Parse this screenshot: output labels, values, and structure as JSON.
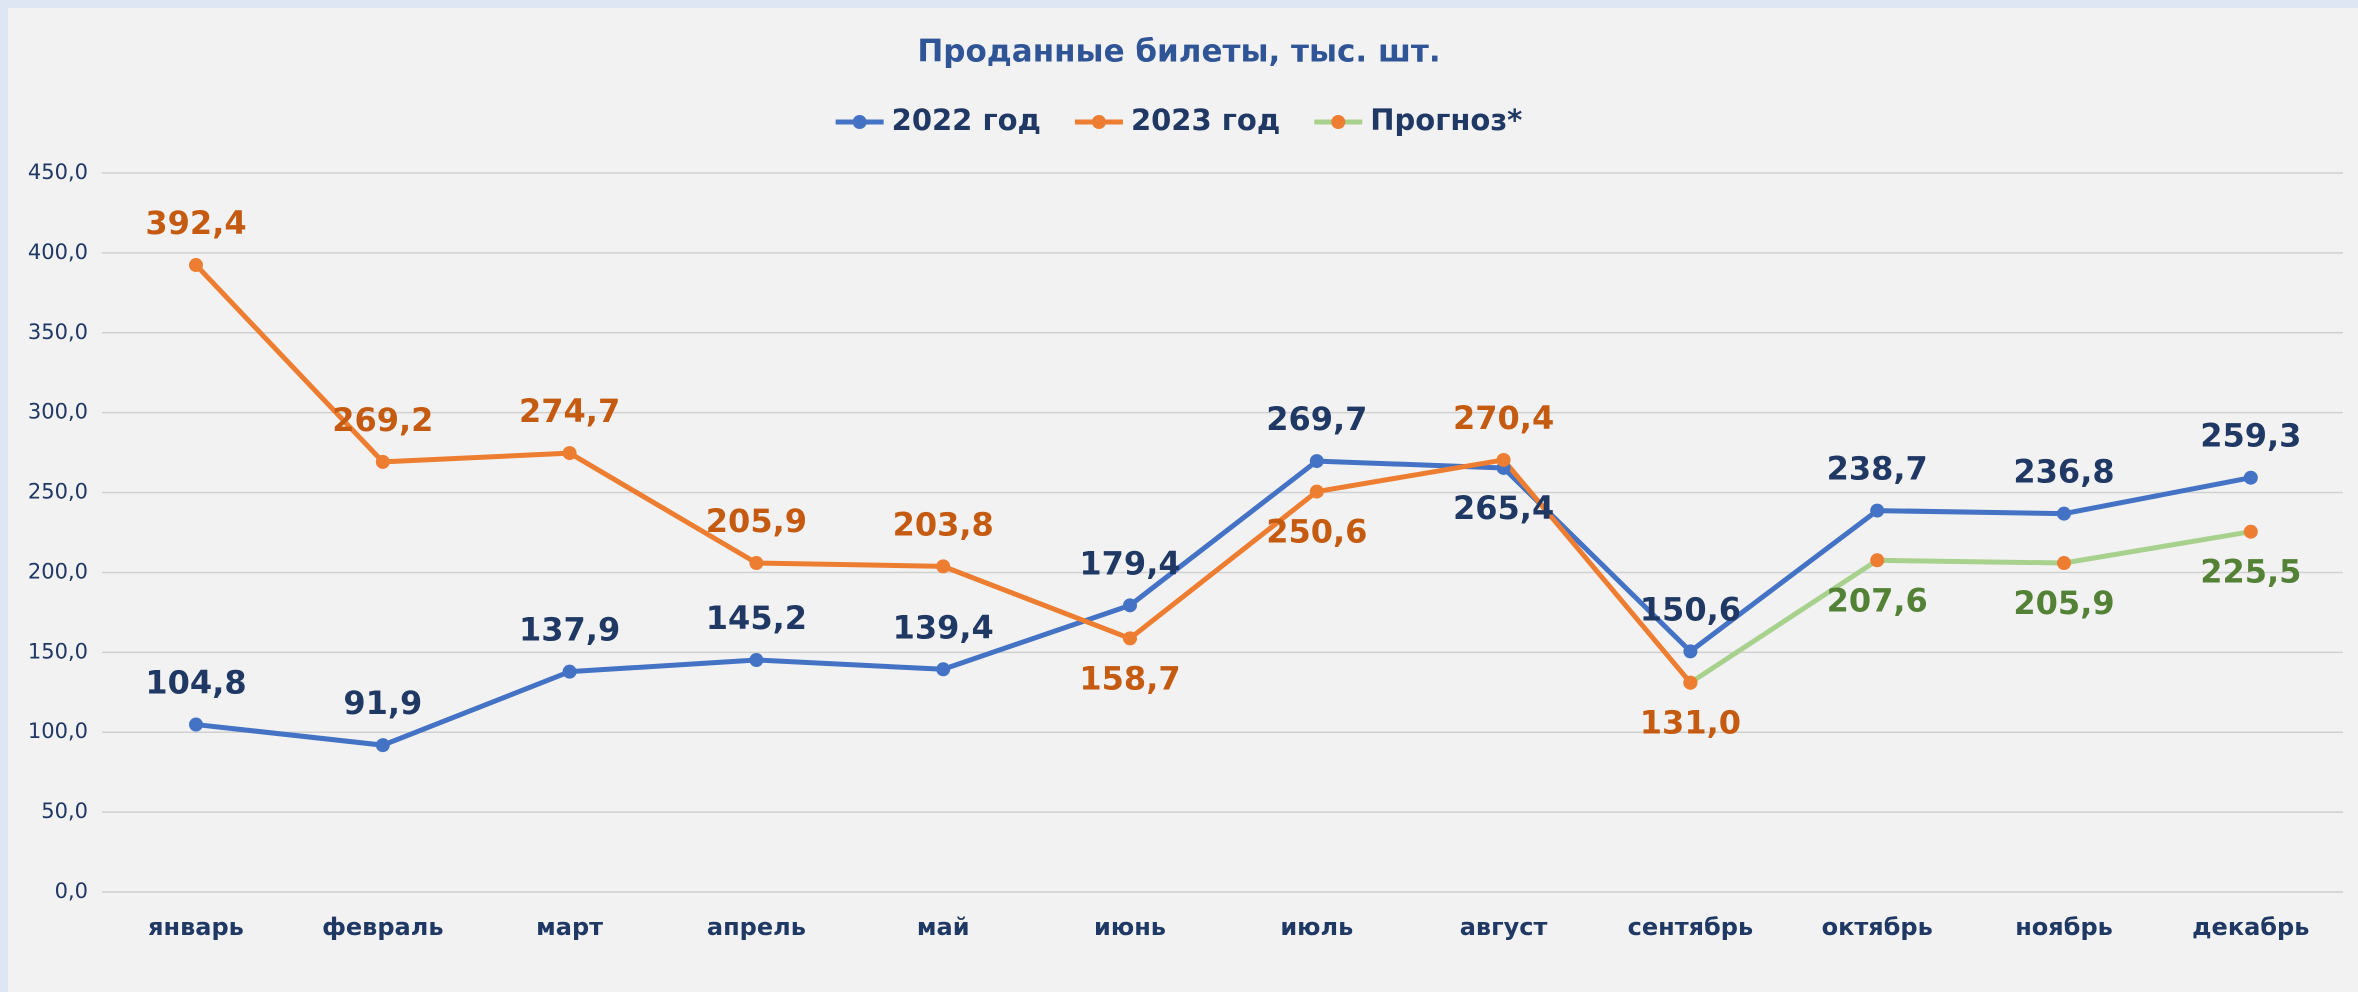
{
  "chart_data": {
    "type": "line",
    "title": "Проданные билеты, тыс. шт.",
    "categories": [
      "январь",
      "февраль",
      "март",
      "апрель",
      "май",
      "июнь",
      "июль",
      "август",
      "сентябрь",
      "октябрь",
      "ноябрь",
      "декабрь"
    ],
    "series": [
      {
        "name": "2022 год",
        "color": "#4472c4",
        "marker_color": "#4472c4",
        "label_color": "#1f3864",
        "values": [
          104.8,
          91.9,
          137.9,
          145.2,
          139.4,
          179.4,
          269.7,
          265.4,
          150.6,
          238.7,
          236.8,
          259.3
        ],
        "value_labels": [
          "104,8",
          "91,9",
          "137,9",
          "145,2",
          "139,4",
          "179,4",
          "269,7",
          "265,4",
          "150,6",
          "238,7",
          "236,8",
          "259,3"
        ]
      },
      {
        "name": "2023 год",
        "color": "#ed7d31",
        "marker_color": "#ed7d31",
        "label_color": "#c55a11",
        "values": [
          392.4,
          269.2,
          274.7,
          205.9,
          203.8,
          158.7,
          250.6,
          270.4,
          131.0,
          null,
          null,
          null
        ],
        "value_labels": [
          "392,4",
          "269,2",
          "274,7",
          "205,9",
          "203,8",
          "158,7",
          "250,6",
          "270,4",
          "131,0",
          null,
          null,
          null
        ]
      },
      {
        "name": "Прогноз*",
        "color": "#a9d18e",
        "marker_color": "#ed7d31",
        "label_color": "#538135",
        "values": [
          null,
          null,
          null,
          null,
          null,
          null,
          null,
          null,
          131.0,
          207.6,
          205.9,
          225.5
        ],
        "value_labels": [
          null,
          null,
          null,
          null,
          null,
          null,
          null,
          null,
          null,
          "207,6",
          "205,9",
          "225,5"
        ]
      }
    ],
    "ylim": [
      0,
      450
    ],
    "yticks": [
      {
        "value": 0,
        "label": "0,0"
      },
      {
        "value": 50,
        "label": "50,0"
      },
      {
        "value": 100,
        "label": "100,0"
      },
      {
        "value": 150,
        "label": "150,0"
      },
      {
        "value": 200,
        "label": "200,0"
      },
      {
        "value": 250,
        "label": "250,0"
      },
      {
        "value": 300,
        "label": "300,0"
      },
      {
        "value": 350,
        "label": "350,0"
      },
      {
        "value": 400,
        "label": "400,0"
      },
      {
        "value": 450,
        "label": "450,0"
      }
    ],
    "grid": true,
    "legend": "top"
  }
}
